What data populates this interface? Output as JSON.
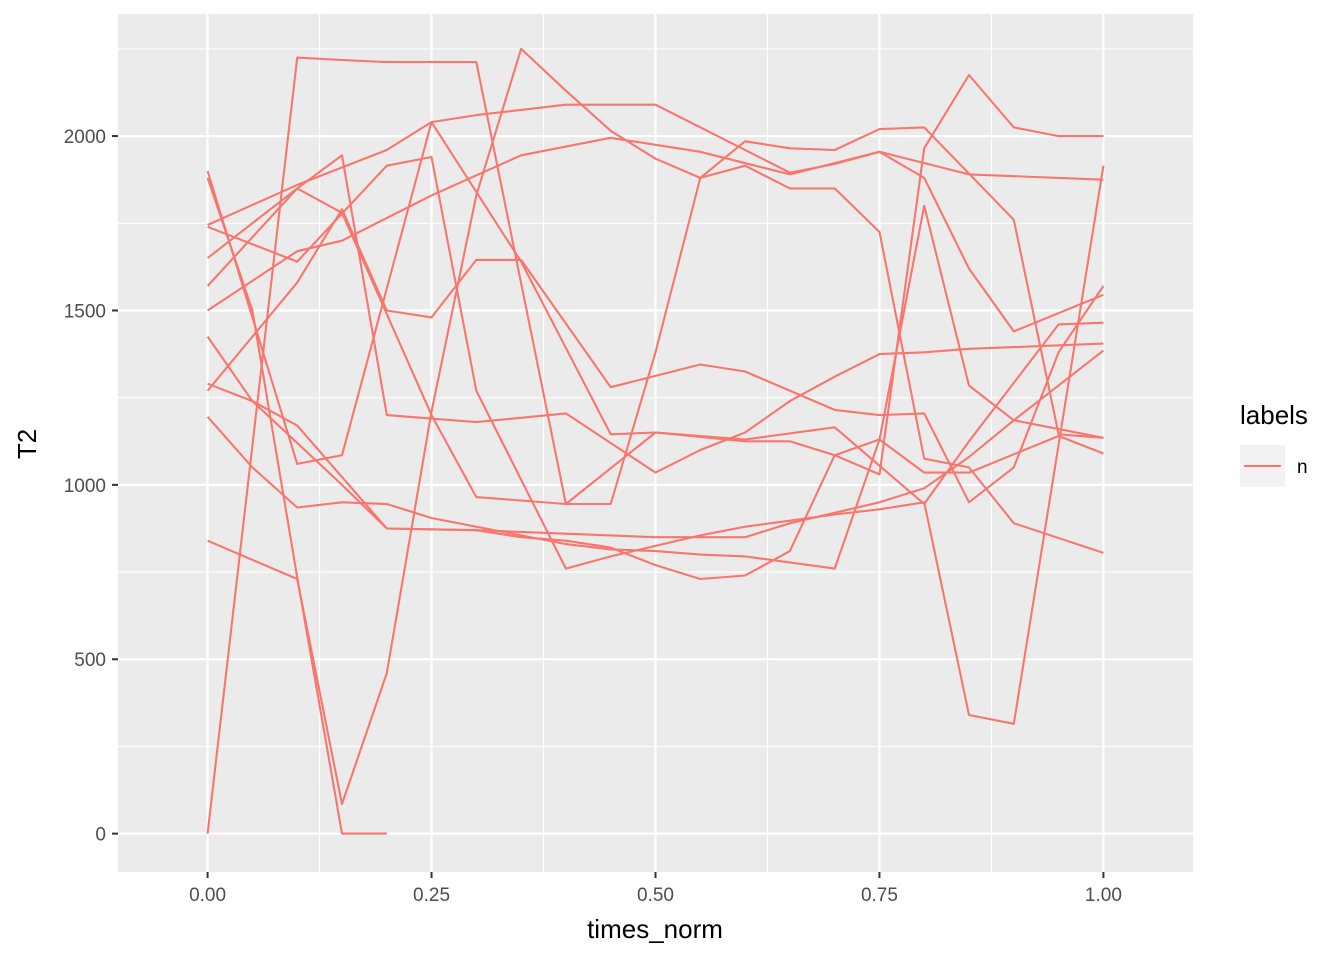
{
  "chart_data": {
    "type": "line",
    "title": "",
    "xlabel": "times_norm",
    "ylabel": "T2",
    "xlim": [
      -0.1,
      1.1
    ],
    "ylim": [
      -110,
      2350
    ],
    "x_ticks": [
      0,
      0.25,
      0.5,
      0.75,
      1
    ],
    "x_tick_labels": [
      "0.00",
      "0.25",
      "0.50",
      "0.75",
      "1.00"
    ],
    "y_ticks": [
      0,
      500,
      1000,
      1500,
      2000
    ],
    "y_tick_labels": [
      "0",
      "500",
      "1000",
      "1500",
      "2000"
    ],
    "grid": true,
    "line_color": "#F8766D",
    "panel_background": "#EBEBEB",
    "legend": {
      "title": "labels",
      "placement": "right",
      "entries": [
        "n"
      ]
    },
    "series": [
      {
        "x": [
          0,
          0.1,
          0.15,
          0.25,
          0.35,
          0.45,
          0.5,
          0.6,
          0.7,
          0.8,
          0.85,
          0.95,
          1.0
        ],
        "y": [
          1900,
          1060,
          1085,
          2040,
          1640,
          1145,
          1150,
          1130,
          1165,
          945,
          1125,
          1460,
          1465
        ]
      },
      {
        "x": [
          0,
          0.1,
          0.15,
          0.2,
          0.3,
          0.4,
          0.5,
          0.6,
          0.65,
          0.7,
          0.75,
          0.8,
          0.85,
          0.95,
          1.0
        ],
        "y": [
          0,
          2225,
          2218,
          2212,
          2212,
          945,
          1150,
          1125,
          1125,
          1085,
          1130,
          1035,
          1035,
          1140,
          1090
        ]
      },
      {
        "x": [
          0,
          0.1,
          0.2,
          0.25,
          0.3,
          0.4,
          0.45,
          0.5,
          0.6,
          0.65,
          0.7,
          0.75,
          0.8,
          0.85,
          0.9,
          1.0
        ],
        "y": [
          1745,
          1860,
          1960,
          2040,
          2060,
          2090,
          2090,
          2090,
          1960,
          1895,
          1920,
          1955,
          1880,
          1620,
          1440,
          1545
        ]
      },
      {
        "x": [
          0,
          0.1,
          0.15,
          0.25,
          0.35,
          0.45,
          0.55,
          0.65,
          0.75,
          0.85,
          1.0
        ],
        "y": [
          1500,
          1670,
          1700,
          1830,
          1945,
          1995,
          1955,
          1890,
          1955,
          1890,
          1875
        ]
      },
      {
        "x": [
          0,
          0.1,
          0.15,
          0.2,
          0.25,
          0.3,
          0.35,
          0.45,
          0.55,
          0.6,
          0.7,
          0.75,
          0.8,
          0.85,
          0.9,
          0.95,
          1.0
        ],
        "y": [
          1270,
          1580,
          1790,
          1500,
          1480,
          1645,
          1645,
          1280,
          1345,
          1325,
          1215,
          1200,
          1205,
          950,
          1050,
          1380,
          1570
        ]
      },
      {
        "x": [
          0,
          0.1,
          0.15,
          0.2,
          0.3,
          0.4,
          0.5,
          0.55,
          0.6,
          0.65,
          0.7,
          0.75,
          0.8,
          0.85,
          0.9,
          1.0
        ],
        "y": [
          1570,
          1850,
          1945,
          1200,
          1180,
          1205,
          1035,
          1100,
          1150,
          1240,
          1310,
          1375,
          1380,
          1390,
          1395,
          1405
        ]
      },
      {
        "x": [
          0,
          0.05,
          0.1,
          0.2,
          0.3,
          0.4,
          0.5,
          0.6,
          0.65,
          0.7,
          0.75,
          0.8,
          0.85,
          0.9,
          1.0
        ],
        "y": [
          1425,
          1240,
          1170,
          875,
          870,
          860,
          850,
          850,
          890,
          920,
          950,
          990,
          1080,
          1185,
          1385
        ]
      },
      {
        "x": [
          0,
          0.05,
          0.1,
          0.15,
          0.2,
          0.25,
          0.35,
          0.4,
          0.45,
          0.5,
          0.55,
          0.6,
          0.7,
          0.75,
          0.8,
          0.85,
          0.9,
          1.0
        ],
        "y": [
          1195,
          1050,
          935,
          950,
          945,
          905,
          855,
          830,
          815,
          810,
          800,
          795,
          760,
          1130,
          1800,
          1285,
          1185,
          1135
        ]
      },
      {
        "x": [
          0,
          0.1,
          0.2,
          0.25,
          0.3,
          0.4,
          0.45,
          0.5,
          0.55,
          0.6,
          0.7,
          0.75,
          0.8,
          0.85,
          0.9,
          1.0
        ],
        "y": [
          1740,
          1640,
          1915,
          1940,
          1270,
          760,
          795,
          825,
          855,
          880,
          915,
          930,
          950,
          340,
          315,
          1915
        ]
      },
      {
        "x": [
          0,
          0.05,
          0.15,
          0.2,
          0.3,
          0.35,
          0.4,
          0.45,
          0.5,
          0.55,
          0.6,
          0.65,
          0.7,
          0.75,
          0.8,
          0.85,
          0.9,
          0.95,
          1.0
        ],
        "y": [
          1290,
          1240,
          1000,
          875,
          870,
          850,
          840,
          820,
          770,
          730,
          740,
          810,
          1085,
          1030,
          1965,
          2175,
          2025,
          2000,
          2000
        ]
      },
      {
        "x": [
          0,
          0.1,
          0.15,
          0.2,
          0.25,
          0.3,
          0.35,
          0.4,
          0.45,
          0.5,
          0.55,
          0.6,
          0.65,
          0.7,
          0.75,
          0.8,
          0.9,
          0.95,
          1.0
        ],
        "y": [
          840,
          730,
          85,
          460,
          1210,
          1830,
          2250,
          2130,
          2015,
          1935,
          1880,
          1985,
          1965,
          1960,
          2020,
          2025,
          1760,
          1145,
          1135
        ]
      },
      {
        "x": [
          0,
          0.1,
          0.15,
          0.25,
          0.3,
          0.35,
          0.4,
          0.45,
          0.5,
          0.55,
          0.6,
          0.65,
          0.7,
          0.75,
          0.8,
          0.85,
          0.9,
          1.0
        ],
        "y": [
          1650,
          1850,
          1780,
          1200,
          965,
          955,
          945,
          945,
          1380,
          1880,
          1915,
          1850,
          1850,
          1725,
          1075,
          1050,
          890,
          805
        ]
      },
      {
        "x": [
          0,
          0.05,
          0.1,
          0.15,
          0.2
        ],
        "y": [
          1880,
          1500,
          735,
          0,
          0
        ]
      }
    ]
  }
}
